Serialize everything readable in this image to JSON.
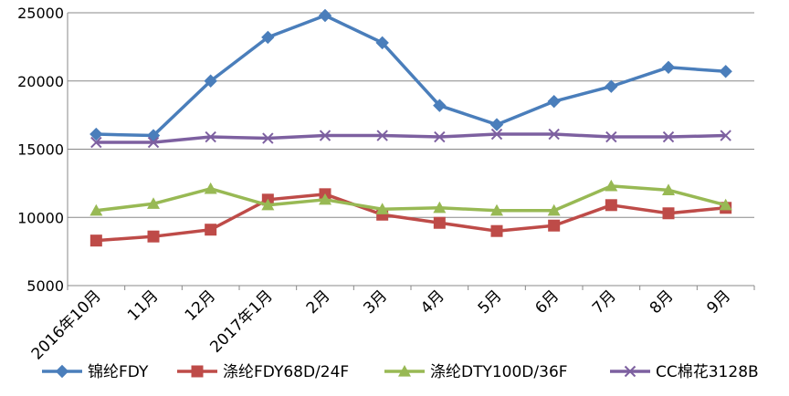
{
  "chart_data": {
    "type": "line",
    "categories": [
      "2016年10月",
      "11月",
      "12月",
      "2017年1月",
      "2月",
      "3月",
      "4月",
      "5月",
      "6月",
      "7月",
      "8月",
      "9月"
    ],
    "ylim": [
      5000,
      25000
    ],
    "yticks": [
      5000,
      10000,
      15000,
      20000,
      25000
    ],
    "grid": true,
    "legend_position": "bottom",
    "series": [
      {
        "name": "锦纶FDY",
        "color": "#4a7ebb",
        "marker": "diamond",
        "values": [
          16100,
          16000,
          20000,
          23200,
          24800,
          22800,
          18200,
          16800,
          18500,
          19600,
          21000,
          20700
        ]
      },
      {
        "name": "涤纶FDY68D/24F",
        "color": "#be4b48",
        "marker": "square",
        "values": [
          8300,
          8600,
          9100,
          11300,
          11700,
          10200,
          9600,
          9000,
          9400,
          10900,
          10300,
          10700
        ]
      },
      {
        "name": "涤纶DTY100D/36F",
        "color": "#98b954",
        "marker": "triangle",
        "values": [
          10500,
          11000,
          12100,
          10900,
          11300,
          10600,
          10700,
          10500,
          10500,
          12300,
          12000,
          10900
        ]
      },
      {
        "name": "CC棉花3128B",
        "color": "#7d60a0",
        "marker": "x",
        "values": [
          15500,
          15500,
          15900,
          15800,
          16000,
          16000,
          15900,
          16100,
          16100,
          15900,
          15900,
          16000
        ]
      }
    ]
  }
}
